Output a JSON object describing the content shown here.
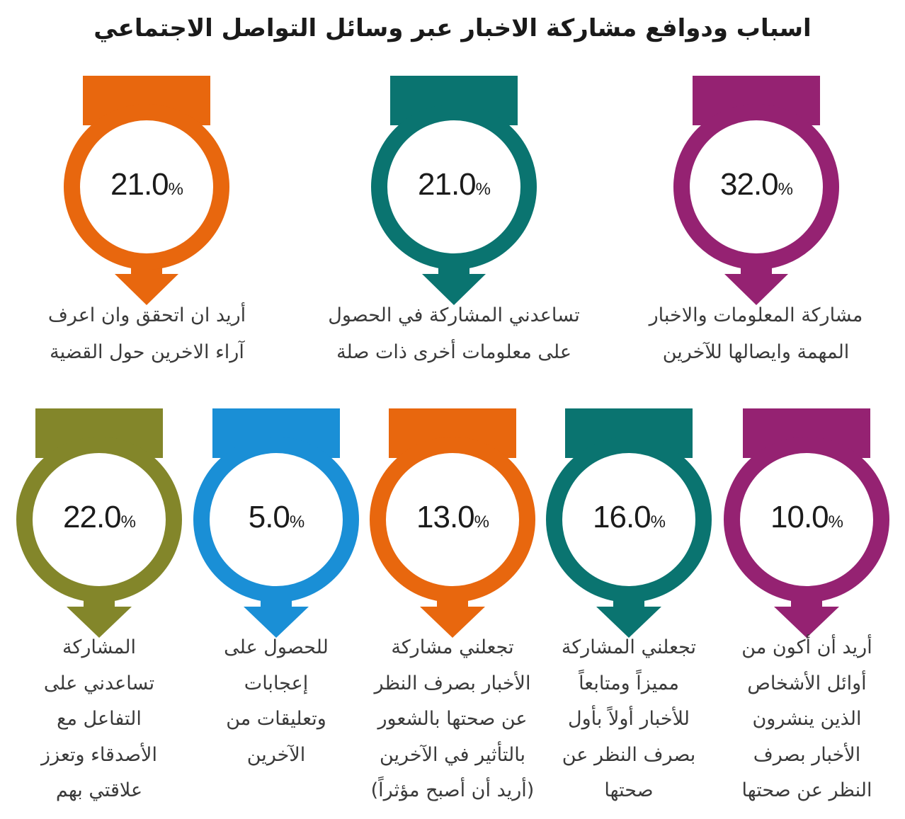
{
  "title": "اسباب ودوافع مشاركة الاخبار عبر وسائل التواصل الاجتماعي",
  "colors": {
    "purple": "#952272",
    "teal": "#0a7470",
    "orange": "#e8670e",
    "blue": "#1a8fd6",
    "olive": "#83862a"
  },
  "items": [
    {
      "value": "32.0",
      "unit": "%",
      "color": "#952272",
      "text": "مشاركة المعلومات والاخبار\nالمهمة وايصالها للآخرين"
    },
    {
      "value": "21.0",
      "unit": "%",
      "color": "#0a7470",
      "text": "تساعدني المشاركة في الحصول\nعلى معلومات أخرى ذات صلة"
    },
    {
      "value": "21.0",
      "unit": "%",
      "color": "#e8670e",
      "text": "أريد ان اتحقق وان اعرف\nآراء الاخرين حول القضية"
    },
    {
      "value": "10.0",
      "unit": "%",
      "color": "#952272",
      "text": "أريد أن أكون من\nأوائل الأشخاص\nالذين ينشرون\nالأخبار بصرف\nالنظر عن صحتها"
    },
    {
      "value": "16.0",
      "unit": "%",
      "color": "#0a7470",
      "text": "تجعلني المشاركة\nمميزاً ومتابعاً\nللأخبار أولاً بأول\nبصرف النظر عن\nصحتها"
    },
    {
      "value": "13.0",
      "unit": "%",
      "color": "#e8670e",
      "text": "تجعلني مشاركة\nالأخبار بصرف النظر\nعن صحتها بالشعور\nبالتأثير في الآخرين\n(أريد أن أصبح مؤثراً)"
    },
    {
      "value": "5.0",
      "unit": "%",
      "color": "#1a8fd6",
      "text": "للحصول على\nإعجابات\nوتعليقات من\nالآخرين"
    },
    {
      "value": "22.0",
      "unit": "%",
      "color": "#83862a",
      "text": "المشاركة\nتساعدني على\nالتفاعل مع\nالأصدقاء وتعزز\nعلاقتي بهم"
    }
  ]
}
